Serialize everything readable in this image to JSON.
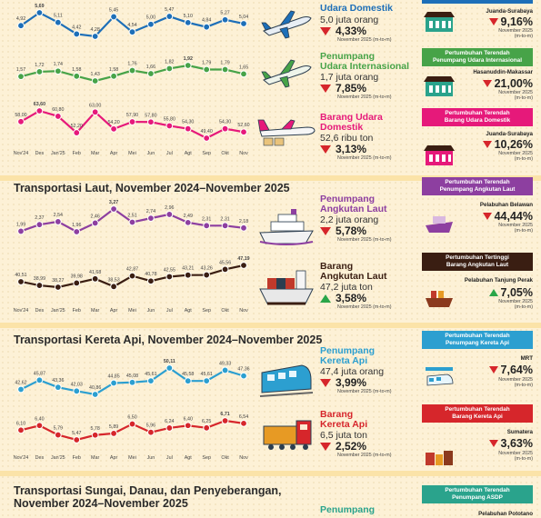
{
  "sections": {
    "laut_title": "Transportasi Laut, November 2024–November 2025",
    "kereta_title": "Transportasi Kereta Api, November 2024–November 2025",
    "asdp_title_1": "Transportasi Sungai, Danau, dan Penyeberangan,",
    "asdp_title_2": "November 2024–November 2025"
  },
  "colors": {
    "udara": "#1d6fb8",
    "intl": "#47a348",
    "barang_udara": "#e6197a",
    "laut": "#8d3fa0",
    "barang_laut": "#3a1e12",
    "kereta": "#2c9fd0",
    "barang_kereta": "#d6262b",
    "asdp": "#2aa38c"
  },
  "x_labels": [
    "Nov'24",
    "Des",
    "Jan'25",
    "Feb",
    "Mar",
    "Apr",
    "Mei",
    "Jun",
    "Jul",
    "Agt",
    "Sep",
    "Okt",
    "Nov"
  ],
  "chart_data": [
    {
      "type": "line",
      "name": "Penumpang Udara Domestik",
      "x": [
        "Nov'24",
        "Des",
        "Jan'25",
        "Feb",
        "Mar",
        "Apr",
        "Mei",
        "Jun",
        "Jul",
        "Agt",
        "Sep",
        "Okt",
        "Nov"
      ],
      "values": [
        4.92,
        5.69,
        5.11,
        4.42,
        4.28,
        5.45,
        4.54,
        5.0,
        5.47,
        5.1,
        4.84,
        5.27,
        5.04
      ],
      "labels": [
        "4,92",
        "5,69",
        "5,11",
        "4,42",
        "4,28",
        "5,45",
        "4,54",
        "5,00",
        "5,47",
        "5,10",
        "4,84",
        "5,27",
        "5,04"
      ],
      "highlight": [
        1
      ]
    },
    {
      "type": "line",
      "name": "Penumpang Udara Internasional",
      "values": [
        1.57,
        1.72,
        1.74,
        1.58,
        1.43,
        1.58,
        1.76,
        1.66,
        1.82,
        1.92,
        1.79,
        1.79,
        1.65
      ],
      "labels": [
        "1,57",
        "1,72",
        "1,74",
        "1,58",
        "1,43",
        "1,58",
        "1,76",
        "1,66",
        "1,82",
        "1,92",
        "1,79",
        "1,79",
        "1,65"
      ],
      "highlight": [
        9
      ]
    },
    {
      "type": "line",
      "name": "Barang Udara Domestik",
      "values": [
        58.0,
        63.6,
        60.8,
        52.2,
        63.0,
        54.2,
        57.9,
        57.8,
        55.8,
        54.3,
        49.4,
        54.3,
        52.6
      ],
      "labels": [
        "58,00",
        "63,60",
        "60,80",
        "52,20",
        "63,00",
        "54,20",
        "57,90",
        "57,80",
        "55,80",
        "54,30",
        "49,40",
        "54,30",
        "52,60"
      ],
      "highlight": [
        1
      ]
    },
    {
      "type": "line",
      "name": "Penumpang Angkutan Laut",
      "values": [
        1.99,
        2.37,
        2.54,
        1.96,
        2.46,
        3.27,
        2.51,
        2.74,
        2.96,
        2.49,
        2.31,
        2.31,
        2.18
      ],
      "labels": [
        "1,99",
        "2,37",
        "2,54",
        "1,96",
        "2,46",
        "3,27",
        "2,51",
        "2,74",
        "2,96",
        "2,49",
        "2,31",
        "2,31",
        "2,18"
      ],
      "highlight": [
        5
      ]
    },
    {
      "type": "line",
      "name": "Barang Angkutan Laut",
      "values": [
        40.51,
        38.99,
        38.27,
        39.98,
        41.68,
        38.53,
        42.87,
        40.78,
        42.55,
        43.21,
        43.26,
        45.56,
        47.19
      ],
      "labels": [
        "40,51",
        "38,99",
        "38,27",
        "39,98",
        "41,68",
        "38,53",
        "42,87",
        "40,78",
        "42,55",
        "43,21",
        "43,26",
        "45,56",
        "47,19"
      ],
      "highlight": [
        12
      ]
    },
    {
      "type": "line",
      "name": "Penumpang Kereta Api",
      "values": [
        42.62,
        45.87,
        43.36,
        42.03,
        40.86,
        44.85,
        45.08,
        45.61,
        50.11,
        45.58,
        45.61,
        49.33,
        47.36
      ],
      "labels": [
        "42,62",
        "45,87",
        "43,36",
        "42,03",
        "40,86",
        "44,85",
        "45,08",
        "45,61",
        "50,11",
        "45,58",
        "45,61",
        "49,33",
        "47,36"
      ],
      "highlight": [
        8
      ]
    },
    {
      "type": "line",
      "name": "Barang Kereta Api",
      "values": [
        6.1,
        6.4,
        5.79,
        5.47,
        5.78,
        5.89,
        6.5,
        5.96,
        6.24,
        6.4,
        6.25,
        6.71,
        6.54
      ],
      "labels": [
        "6,10",
        "6,40",
        "5,79",
        "5,47",
        "5,78",
        "5,89",
        "6,50",
        "5,96",
        "6,24",
        "6,40",
        "6,25",
        "6,71",
        "6,54"
      ],
      "highlight": [
        11
      ]
    }
  ],
  "info": {
    "udara": {
      "title": "Udara Domestik",
      "value": "5,0 juta orang",
      "pct": "4,33%",
      "note": "November 2025 (m-to-m)"
    },
    "intl": {
      "title1": "Penumpang",
      "title2": "Udara Internasional",
      "value": "1,7 juta orang",
      "pct": "7,85%",
      "note": "November 2025 (m-to-m)"
    },
    "barang_udara": {
      "title1": "Barang Udara",
      "title2": "Domestik",
      "value": "52,6 ribu ton",
      "pct": "3,13%",
      "note": "November 2025 (m-to-m)"
    },
    "laut": {
      "title1": "Penumpang",
      "title2": "Angkutan Laut",
      "value": "2,2 juta orang",
      "pct": "5,78%",
      "note": "November 2025 (m-to-m)"
    },
    "barang_laut": {
      "title1": "Barang",
      "title2": "Angkutan Laut",
      "value": "47,2 juta ton",
      "pct": "3,58%",
      "note": "November 2025 (m-to-m)"
    },
    "kereta": {
      "title1": "Penumpang",
      "title2": "Kereta Api",
      "value": "47,4 juta orang",
      "pct": "3,99%",
      "note": "November 2025 (m-to-m)"
    },
    "barang_kereta": {
      "title1": "Barang",
      "title2": "Kereta Api",
      "value": "6,5 juta ton",
      "pct": "2,52%",
      "note": "November 2025 (m-to-m)"
    },
    "asdp": {
      "title1": "Penumpang"
    }
  },
  "right": {
    "r1": {
      "name": "Juanda-Surabaya",
      "pct": "9,16%",
      "note1": "November 2025",
      "note2": "(m-to-m)"
    },
    "r2": {
      "box1": "Pertumbuhan Terendah",
      "box2": "Penumpang Udara Internasional",
      "name": "Hasanuddin-Makassar",
      "pct": "21,00%",
      "note1": "November 2025",
      "note2": "(m-to-m)"
    },
    "r3": {
      "box1": "Pertumbuhan Terendah",
      "box2": "Barang Udara Domestik",
      "name": "Juanda-Surabaya",
      "pct": "10,26%",
      "note1": "November 2025",
      "note2": "(m-to-m)"
    },
    "r4": {
      "box1": "Pertumbuhan Terendah",
      "box2": "Penumpang Angkutan Laut",
      "name": "Pelabuhan Belawan",
      "pct": "44,44%",
      "note1": "November 2025",
      "note2": "(m-to-m)"
    },
    "r5": {
      "box1": "Pertumbuhan Tertinggi",
      "box2": "Barang Angkutan Laut",
      "name": "Pelabuhan Tanjung Perak",
      "pct": "7,05%",
      "note1": "November 2025",
      "note2": "(m-to-m)"
    },
    "r6": {
      "box1": "Pertumbuhan Terendah",
      "box2": "Penumpang Kereta Api",
      "name": "MRT",
      "pct": "7,64%",
      "note1": "November 2025",
      "note2": "(m-to-m)"
    },
    "r7": {
      "box1": "Pertumbuhan Terendah",
      "box2": "Barang Kereta Api",
      "name": "Sumatera",
      "pct": "3,63%",
      "note1": "November 2025",
      "note2": "(m-to-m)"
    },
    "r8": {
      "box1": "Pertumbuhan Terendah",
      "box2": "Penumpang ASDP",
      "name": "Pelabuhan Pototano"
    }
  }
}
